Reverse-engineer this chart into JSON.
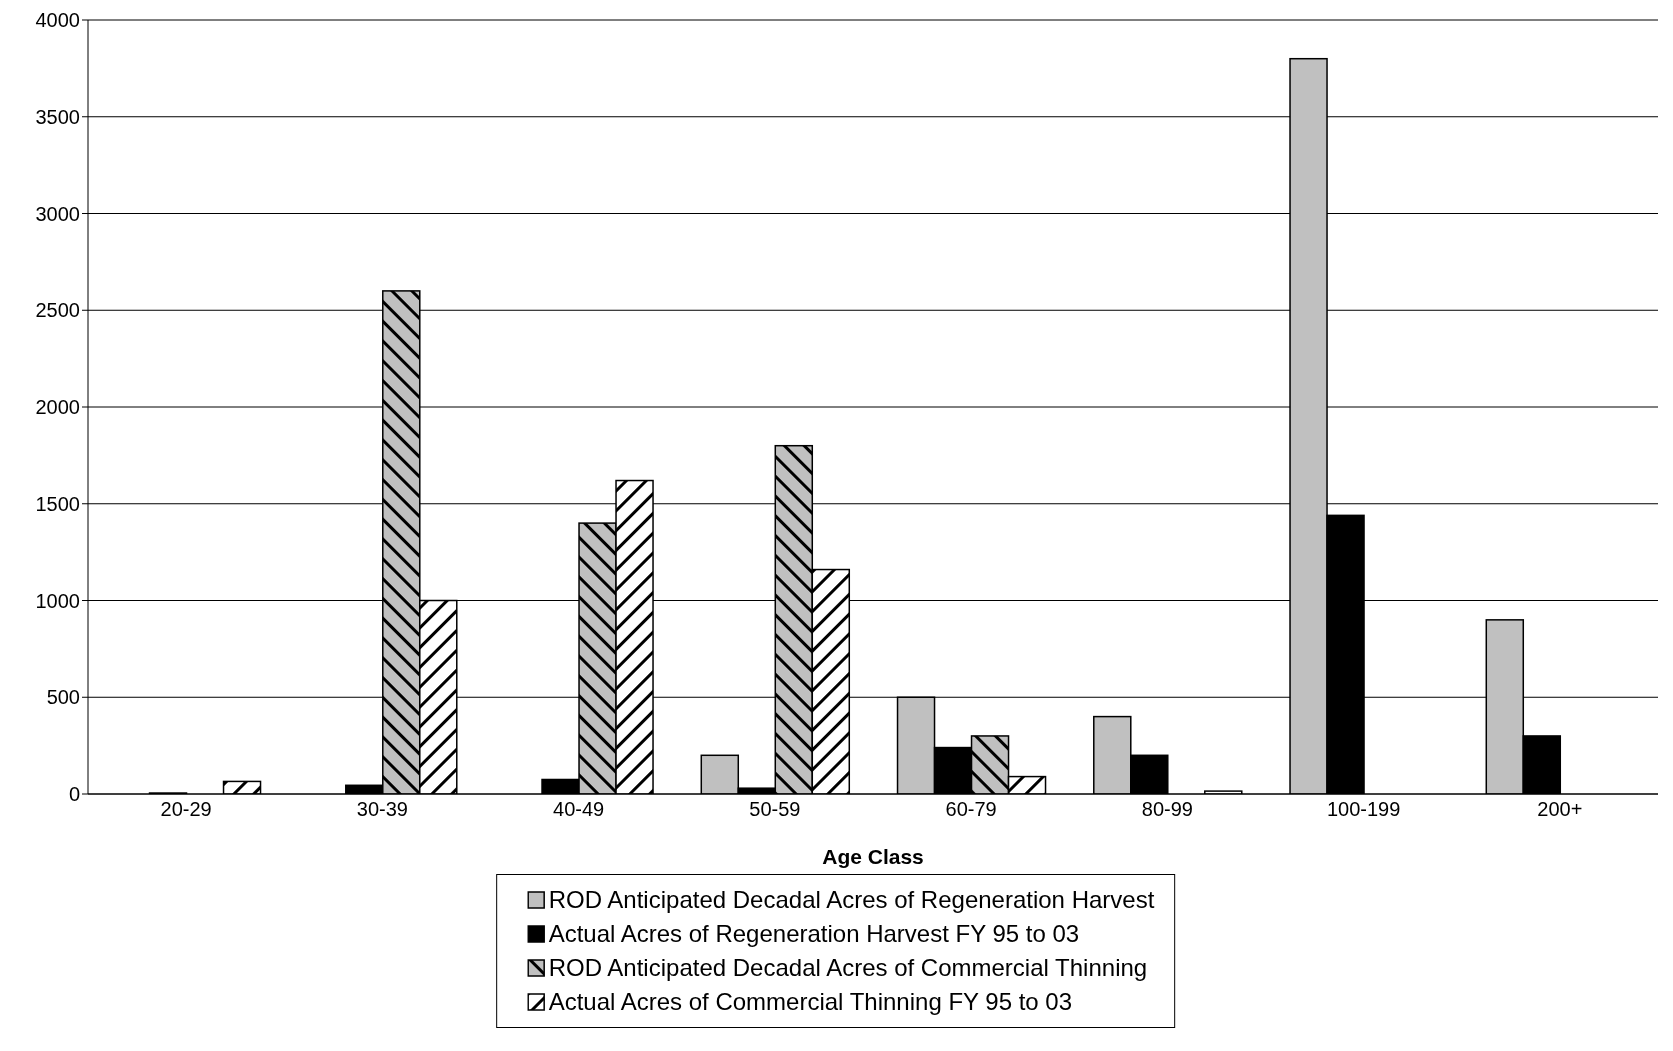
{
  "chart_data": {
    "type": "bar",
    "xlabel": "Age Class",
    "categories": [
      "20-29",
      "30-39",
      "40-49",
      "50-59",
      "60-79",
      "80-99",
      "100-199",
      "200+"
    ],
    "series": [
      {
        "name": "ROD Anticipated Decadal Acres of Regeneration Harvest",
        "color": "#c0c0c0",
        "values": [
          0,
          0,
          0,
          200,
          500,
          400,
          3800,
          900
        ]
      },
      {
        "name": "Actual Acres of Regeneration Harvest FY 95 to 03",
        "color": "#000000",
        "values": [
          5,
          45,
          75,
          30,
          240,
          200,
          1440,
          300
        ]
      },
      {
        "name": "ROD Anticipated Decadal Acres of Commercial Thinning",
        "color": "#c0c0c0",
        "values": [
          0,
          2600,
          1400,
          1800,
          300,
          0,
          0,
          0
        ]
      },
      {
        "name": "Actual Acres of Commercial Thinning FY 95 to 03",
        "color": "#ffffff",
        "values": [
          65,
          1000,
          1620,
          1160,
          90,
          15,
          0,
          0
        ]
      }
    ],
    "ylim": [
      0,
      4000
    ],
    "yticks": [
      0,
      500,
      1000,
      1500,
      2000,
      2500,
      3000,
      3500,
      4000
    ],
    "grid": "y",
    "legend": "bottom"
  }
}
